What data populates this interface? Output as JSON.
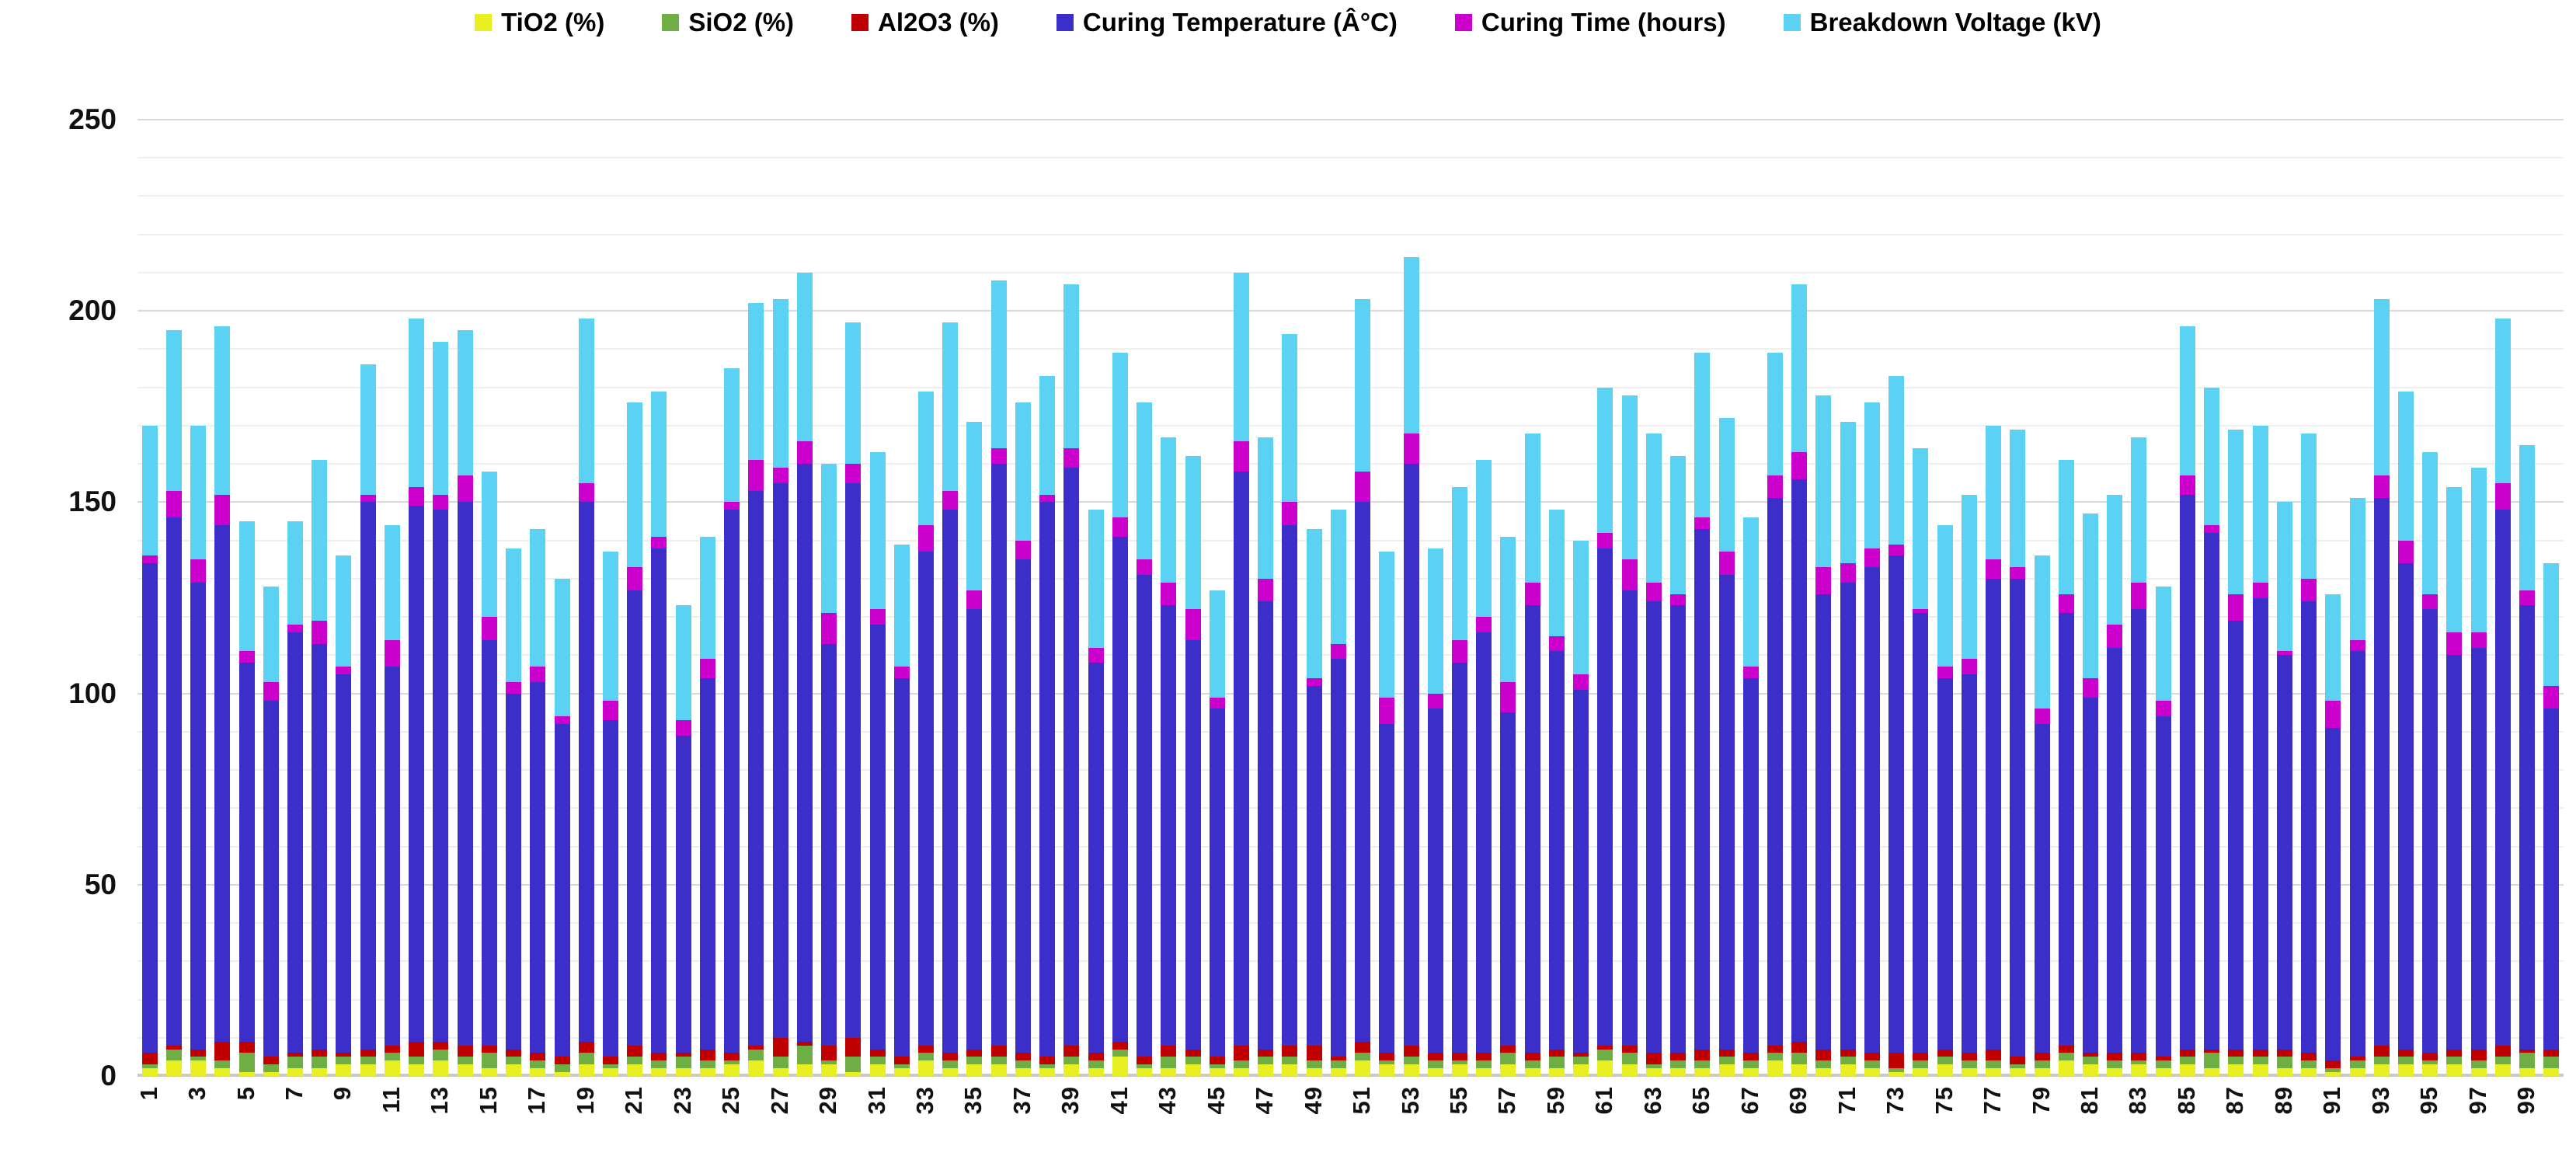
{
  "chart_data": {
    "type": "bar",
    "stacked": true,
    "title": "",
    "xlabel": "",
    "ylabel": "",
    "ylim": [
      0,
      250
    ],
    "yticks": [
      0,
      50,
      100,
      150,
      200,
      250
    ],
    "grid_step": 10,
    "grid": "on",
    "legend_position": "top",
    "x_tick_step": 2,
    "categories": [
      1,
      2,
      3,
      4,
      5,
      6,
      7,
      8,
      9,
      10,
      11,
      12,
      13,
      14,
      15,
      16,
      17,
      18,
      19,
      20,
      21,
      22,
      23,
      24,
      25,
      26,
      27,
      28,
      29,
      30,
      31,
      32,
      33,
      34,
      35,
      36,
      37,
      38,
      39,
      40,
      41,
      42,
      43,
      44,
      45,
      46,
      47,
      48,
      49,
      50,
      51,
      52,
      53,
      54,
      55,
      56,
      57,
      58,
      59,
      60,
      61,
      62,
      63,
      64,
      65,
      66,
      67,
      68,
      69,
      70,
      71,
      72,
      73,
      74,
      75,
      76,
      77,
      78,
      79,
      80,
      81,
      82,
      83,
      84,
      85,
      86,
      87,
      88,
      89,
      90,
      91,
      92,
      93,
      94,
      95,
      96,
      97,
      98,
      99,
      100
    ],
    "series": [
      {
        "name": "TiO2 (%)",
        "color": "#e7ef21",
        "values": [
          2,
          4,
          4,
          2,
          1,
          1,
          2,
          2,
          3,
          3,
          4,
          3,
          4,
          3,
          2,
          3,
          2,
          1,
          3,
          2,
          3,
          2,
          2,
          2,
          3,
          4,
          2,
          3,
          3,
          1,
          3,
          2,
          4,
          2,
          3,
          3,
          2,
          2,
          3,
          2,
          5,
          2,
          2,
          3,
          2,
          2,
          3,
          3,
          2,
          2,
          4,
          3,
          3,
          2,
          3,
          2,
          3,
          2,
          2,
          3,
          4,
          3,
          2,
          2,
          2,
          3,
          2,
          4,
          3,
          2,
          3,
          2,
          1,
          2,
          3,
          2,
          2,
          2,
          2,
          4,
          3,
          2,
          3,
          2,
          3,
          2,
          3,
          3,
          2,
          2,
          1,
          2,
          3,
          3,
          3,
          3,
          2,
          3,
          2,
          2
        ]
      },
      {
        "name": "SiO2 (%)",
        "color": "#6fae44",
        "values": [
          1,
          3,
          1,
          2,
          5,
          2,
          3,
          3,
          2,
          2,
          2,
          2,
          3,
          2,
          4,
          2,
          2,
          2,
          3,
          1,
          2,
          2,
          3,
          2,
          1,
          3,
          3,
          5,
          1,
          4,
          2,
          1,
          2,
          2,
          2,
          2,
          2,
          1,
          2,
          2,
          2,
          1,
          3,
          2,
          1,
          2,
          2,
          2,
          2,
          2,
          2,
          1,
          2,
          2,
          1,
          2,
          3,
          2,
          3,
          2,
          3,
          3,
          1,
          2,
          2,
          2,
          2,
          2,
          3,
          2,
          2,
          2,
          1,
          2,
          2,
          2,
          2,
          1,
          2,
          2,
          2,
          2,
          1,
          2,
          2,
          4,
          2,
          2,
          3,
          2,
          1,
          2,
          2,
          2,
          1,
          2,
          2,
          2,
          4,
          3
        ]
      },
      {
        "name": "Al2O3 (%)",
        "color": "#c00000",
        "values": [
          3,
          1,
          2,
          5,
          3,
          2,
          1,
          2,
          1,
          2,
          2,
          4,
          2,
          3,
          2,
          2,
          2,
          2,
          3,
          2,
          3,
          2,
          1,
          3,
          2,
          1,
          5,
          1,
          4,
          5,
          2,
          2,
          2,
          2,
          2,
          3,
          2,
          2,
          3,
          2,
          2,
          2,
          3,
          2,
          2,
          4,
          2,
          3,
          4,
          1,
          3,
          2,
          3,
          2,
          2,
          2,
          2,
          2,
          2,
          1,
          1,
          2,
          3,
          2,
          3,
          2,
          2,
          2,
          3,
          3,
          2,
          2,
          4,
          2,
          2,
          2,
          3,
          2,
          2,
          2,
          1,
          2,
          2,
          1,
          2,
          1,
          2,
          2,
          2,
          2,
          2,
          1,
          3,
          2,
          2,
          2,
          3,
          3,
          1,
          2
        ]
      },
      {
        "name": "Curing Temperature (Â°C)",
        "color": "#3c2ec9",
        "values": [
          128,
          138,
          122,
          135,
          99,
          93,
          110,
          106,
          99,
          143,
          99,
          140,
          139,
          142,
          106,
          93,
          97,
          87,
          141,
          88,
          119,
          132,
          83,
          97,
          142,
          145,
          145,
          151,
          105,
          145,
          111,
          99,
          129,
          142,
          115,
          152,
          129,
          145,
          151,
          102,
          132,
          126,
          115,
          107,
          91,
          150,
          117,
          136,
          94,
          104,
          141,
          86,
          152,
          90,
          102,
          110,
          87,
          117,
          104,
          95,
          130,
          119,
          118,
          117,
          136,
          124,
          98,
          143,
          147,
          119,
          122,
          127,
          130,
          115,
          97,
          99,
          123,
          125,
          86,
          113,
          93,
          106,
          116,
          89,
          145,
          135,
          112,
          118,
          103,
          118,
          87,
          106,
          143,
          127,
          116,
          103,
          105,
          140,
          116,
          89
        ]
      },
      {
        "name": "Curing Time (hours)",
        "color": "#cc00cc",
        "values": [
          2,
          7,
          6,
          8,
          3,
          5,
          2,
          6,
          2,
          2,
          7,
          5,
          4,
          7,
          6,
          3,
          4,
          2,
          5,
          5,
          6,
          3,
          4,
          5,
          2,
          8,
          4,
          6,
          8,
          5,
          4,
          3,
          7,
          5,
          5,
          4,
          5,
          2,
          5,
          4,
          5,
          4,
          6,
          8,
          3,
          8,
          6,
          6,
          2,
          4,
          8,
          7,
          8,
          4,
          6,
          4,
          8,
          6,
          4,
          4,
          4,
          8,
          5,
          3,
          3,
          6,
          3,
          6,
          7,
          7,
          5,
          5,
          3,
          1,
          3,
          4,
          5,
          3,
          4,
          5,
          5,
          6,
          7,
          4,
          5,
          2,
          7,
          4,
          1,
          6,
          7,
          3,
          6,
          6,
          4,
          6,
          4,
          7,
          4,
          6
        ]
      },
      {
        "name": "Breakdown Voltage (kV)",
        "color": "#5bd1f4",
        "values": [
          34,
          42,
          35,
          44,
          34,
          25,
          27,
          42,
          29,
          34,
          30,
          44,
          40,
          38,
          38,
          35,
          36,
          36,
          43,
          39,
          43,
          38,
          30,
          32,
          35,
          41,
          44,
          44,
          39,
          37,
          41,
          32,
          35,
          44,
          44,
          44,
          36,
          31,
          43,
          36,
          43,
          41,
          38,
          40,
          28,
          44,
          37,
          44,
          39,
          35,
          45,
          38,
          46,
          38,
          40,
          41,
          38,
          39,
          33,
          35,
          38,
          43,
          39,
          36,
          43,
          35,
          39,
          32,
          44,
          45,
          37,
          38,
          44,
          42,
          37,
          43,
          35,
          36,
          40,
          35,
          43,
          34,
          38,
          30,
          39,
          36,
          43,
          41,
          39,
          38,
          28,
          37,
          46,
          39,
          37,
          38,
          43,
          43,
          38,
          32
        ]
      }
    ]
  },
  "axes": {
    "y_tick_labels": [
      "0",
      "50",
      "100",
      "150",
      "200",
      "250"
    ],
    "x_tick_labels": [
      "1",
      "3",
      "5",
      "7",
      "9",
      "11",
      "13",
      "15",
      "17",
      "19",
      "21",
      "23",
      "25",
      "27",
      "29",
      "31",
      "33",
      "35",
      "37",
      "39",
      "41",
      "43",
      "45",
      "47",
      "49",
      "51",
      "53",
      "55",
      "57",
      "59",
      "61",
      "63",
      "65",
      "67",
      "69",
      "71",
      "73",
      "75",
      "77",
      "79",
      "81",
      "83",
      "85",
      "87",
      "89",
      "91",
      "93",
      "95",
      "97",
      "99"
    ]
  },
  "palette": {
    "gridline_minor": "#efefef",
    "gridline_major": "#d9d9d9",
    "axis_line": "#c9c9c9",
    "text": "#111111",
    "background": "#ffffff"
  }
}
